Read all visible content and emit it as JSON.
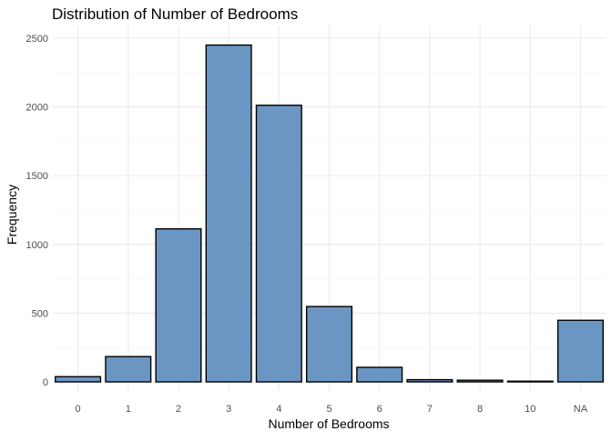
{
  "chart_data": {
    "type": "bar",
    "title": "Distribution of Number of Bedrooms",
    "xlabel": "Number of Bedrooms",
    "ylabel": "Frequency",
    "categories": [
      "0",
      "1",
      "2",
      "3",
      "4",
      "5",
      "6",
      "7",
      "8",
      "10",
      "NA"
    ],
    "values": [
      38,
      184,
      1113,
      2450,
      2012,
      548,
      106,
      16,
      12,
      4,
      448
    ],
    "ylim": [
      0,
      2600
    ],
    "yticks": [
      0,
      500,
      1000,
      1500,
      2000,
      2500
    ],
    "bar_color": "#6b96c3",
    "bar_outline": "#000000",
    "grid": true,
    "legend": "none"
  }
}
